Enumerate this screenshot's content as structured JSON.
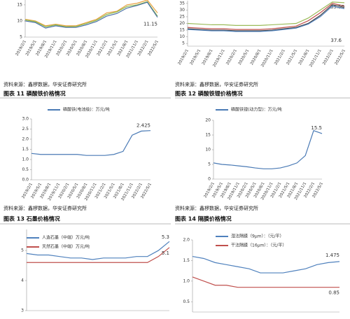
{
  "charts": [
    {
      "type": "line",
      "categories": [
        "2019/2/1",
        "2019/5/1",
        "2019/8/1",
        "2019/11/1",
        "2020/2/1",
        "2020/5/1",
        "2020/8/1",
        "2020/11/1",
        "2021/2/1",
        "2021/5/1",
        "2021/8/1",
        "2021/11/1",
        "2022/2/1",
        "2022/5/1"
      ],
      "series": [
        {
          "color": "#e8a040",
          "values": [
            10.5,
            10,
            8.5,
            9,
            8.5,
            8.5,
            9.5,
            10.5,
            12.5,
            13,
            15,
            15.5,
            16.5,
            12.5
          ]
        },
        {
          "color": "#8dbb4f",
          "values": [
            10.3,
            9.8,
            8.2,
            8.8,
            8.2,
            8.3,
            9.2,
            10.2,
            12,
            12.8,
            14.5,
            15,
            16,
            11.5
          ]
        },
        {
          "color": "#4a6fa5",
          "values": [
            10,
            9.5,
            7.8,
            8.5,
            8,
            8,
            8.8,
            9.8,
            11.5,
            12.3,
            14,
            14.8,
            15.8,
            11.15
          ],
          "end_label": true
        }
      ],
      "ylim": [
        5,
        16.5
      ],
      "yticks": [
        5,
        10,
        15
      ]
    },
    {
      "type": "line",
      "categories": [
        "2019/2/1",
        "2019/5/1",
        "2019/8/1",
        "2019/11/1",
        "2020/2/1",
        "2020/5/1",
        "2020/8/1",
        "2020/11/1",
        "2021/2/1",
        "2021/5/1",
        "2021/8/1",
        "2021/11/1",
        "2022/2/1",
        "2022/5/1"
      ],
      "series": [
        {
          "color": "#c0504d",
          "values": [
            17,
            16.5,
            16,
            16,
            15.5,
            15.5,
            15.5,
            16,
            17,
            18,
            22,
            28,
            35,
            33
          ]
        },
        {
          "color": "#9bbb59",
          "values": [
            20,
            19.5,
            19,
            19,
            18.5,
            18.5,
            18.5,
            19,
            19.5,
            20,
            24,
            30,
            36,
            35.5
          ],
          "value_labels": [
            null,
            null,
            null,
            null,
            null,
            null,
            null,
            null,
            null,
            null,
            null,
            null,
            null,
            "35.50"
          ]
        },
        {
          "color": "#444444",
          "values": [
            16,
            15.5,
            15,
            15,
            14.5,
            14.5,
            14.5,
            15,
            16,
            17,
            20,
            26,
            34,
            32
          ]
        },
        {
          "color": "#4f81bd",
          "values": [
            15.5,
            15,
            14.5,
            14.5,
            14,
            14,
            14,
            14.5,
            15.5,
            16.5,
            19.5,
            25,
            33,
            31
          ]
        }
      ],
      "annotations": [
        "37.6"
      ],
      "ylim": [
        3,
        37
      ],
      "yticks": [
        5,
        10,
        15,
        20,
        25,
        30,
        35
      ]
    },
    {
      "type": "line",
      "categories": [
        "2019/2/1",
        "2019/5/1",
        "2019/8/1",
        "2019/11/1",
        "2020/2/1",
        "2020/5/1",
        "2020/8/1",
        "2020/11/1",
        "2021/2/1",
        "2021/5/1",
        "2021/8/1",
        "2021/11/1",
        "2022/2/1",
        "2022/5/1"
      ],
      "series": [
        {
          "name": "磷酸铁(电池级)：万元/吨",
          "color": "#4a7ab5",
          "values": [
            1.3,
            1.25,
            1.25,
            1.25,
            1.25,
            1.25,
            1.2,
            1.2,
            1.2,
            1.25,
            1.4,
            2.2,
            2.4,
            2.425
          ],
          "end_label": true
        }
      ],
      "ylim": [
        0,
        3
      ],
      "yticks": [
        {
          "value": 0,
          "label": "0.0"
        },
        {
          "value": 0.5,
          "label": "0.5"
        },
        {
          "value": 1,
          "label": "1.0"
        },
        {
          "value": 1.5,
          "label": "1.5"
        },
        {
          "value": 2,
          "label": "2.0"
        },
        {
          "value": 2.5,
          "label": "2.5"
        },
        {
          "value": 3,
          "label": "3.0"
        }
      ]
    },
    {
      "type": "line",
      "categories": [
        "2019/2/1",
        "2019/5/1",
        "2019/8/1",
        "2019/11/1",
        "2020/2/1",
        "2020/5/1",
        "2020/8/1",
        "2020/11/1",
        "2021/2/1",
        "2021/5/1",
        "2021/8/1",
        "2021/11/1",
        "2022/2/1",
        "2022/5/1"
      ],
      "series": [
        {
          "name": "磷酸铁锂(动力型)：万元/吨",
          "color": "#4a7ab5",
          "values": [
            5.5,
            5,
            4.8,
            4.5,
            4.2,
            3.8,
            3.5,
            3.5,
            3.8,
            4.5,
            5.5,
            8,
            16.5,
            15.5
          ],
          "end_label": true
        }
      ],
      "ylim": [
        0,
        20
      ],
      "yticks": [
        0,
        5,
        10,
        15,
        20
      ]
    },
    {
      "type": "line",
      "series": [
        {
          "name": "人造石墨（中端）万元/吨",
          "color": "#4f81bd",
          "values": [
            4.9,
            4.85,
            4.85,
            4.8,
            4.75,
            4.75,
            4.7,
            4.75,
            4.75,
            4.75,
            4.8,
            4.8,
            5.0,
            5.3
          ],
          "end_label": true
        },
        {
          "name": "天然石墨（中端）万元/吨",
          "color": "#c0504d",
          "values": [
            4.6,
            4.6,
            4.6,
            4.6,
            4.6,
            4.6,
            4.6,
            4.6,
            4.6,
            4.6,
            4.6,
            4.6,
            4.8,
            5.1
          ],
          "end_label": true
        }
      ],
      "ylim": [
        3,
        5.7
      ],
      "yticks": [
        3,
        4,
        5
      ]
    },
    {
      "type": "line",
      "series": [
        {
          "name": "湿法隔膜（9μm）：（元/平）",
          "color": "#4f81bd",
          "values": [
            1.6,
            1.55,
            1.45,
            1.4,
            1.35,
            1.3,
            1.2,
            1.2,
            1.2,
            1.25,
            1.3,
            1.4,
            1.45,
            1.475
          ],
          "end_label": true
        },
        {
          "name": "干法隔膜（16μm）：（元/平）",
          "color": "#c0504d",
          "values": [
            1.1,
            1.0,
            0.9,
            0.9,
            0.85,
            0.85,
            0.85,
            0.85,
            0.85,
            0.85,
            0.85,
            0.85,
            0.85,
            0.85
          ],
          "end_label": true
        }
      ],
      "ylim": [
        0.25,
        2.0
      ],
      "yticks": [
        {
          "value": 0.5,
          "label": "0.5"
        },
        {
          "value": 1,
          "label": "1.0"
        },
        {
          "value": 1.5,
          "label": "1.5"
        },
        {
          "value": 2,
          "label": "2.0"
        }
      ]
    }
  ],
  "sources": [
    "资料来源：鑫椤数据，华安证券研究所",
    "资料来源：鑫椤数据，华安证券研究所",
    "资料来源：鑫椤数据，华安证券研究所",
    "资料来源：鑫椤数据，华安证券研究所"
  ],
  "captions": [
    "图表 11 磷酸铁价格情况",
    "图表 12 磷酸铁锂价格情况",
    "图表 13 石墨价格情况",
    "图表 14 隔膜价格情况"
  ]
}
